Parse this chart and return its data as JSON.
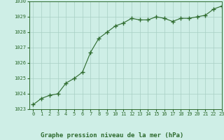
{
  "x": [
    0,
    1,
    2,
    3,
    4,
    5,
    6,
    7,
    8,
    9,
    10,
    11,
    12,
    13,
    14,
    15,
    16,
    17,
    18,
    19,
    20,
    21,
    22,
    23
  ],
  "y": [
    1023.3,
    1023.7,
    1023.9,
    1024.0,
    1024.7,
    1025.0,
    1025.4,
    1026.7,
    1027.6,
    1028.0,
    1028.4,
    1028.6,
    1028.9,
    1028.8,
    1028.8,
    1029.0,
    1028.9,
    1028.7,
    1028.9,
    1028.9,
    1029.0,
    1029.1,
    1029.5,
    1029.7
  ],
  "line_color": "#2d6a2d",
  "marker": "+",
  "marker_size": 4,
  "bg_color": "#ceeee6",
  "grid_color": "#a8cfc4",
  "title": "Graphe pression niveau de la mer (hPa)",
  "ylim": [
    1023,
    1030
  ],
  "xlim": [
    -0.5,
    23
  ],
  "yticks": [
    1023,
    1024,
    1025,
    1026,
    1027,
    1028,
    1029,
    1030
  ],
  "xticks": [
    0,
    1,
    2,
    3,
    4,
    5,
    6,
    7,
    8,
    9,
    10,
    11,
    12,
    13,
    14,
    15,
    16,
    17,
    18,
    19,
    20,
    21,
    22,
    23
  ],
  "tick_color": "#2d6a2d",
  "tick_fontsize": 5,
  "title_fontsize": 6.5,
  "title_color": "#2d6a2d",
  "title_bold": true
}
